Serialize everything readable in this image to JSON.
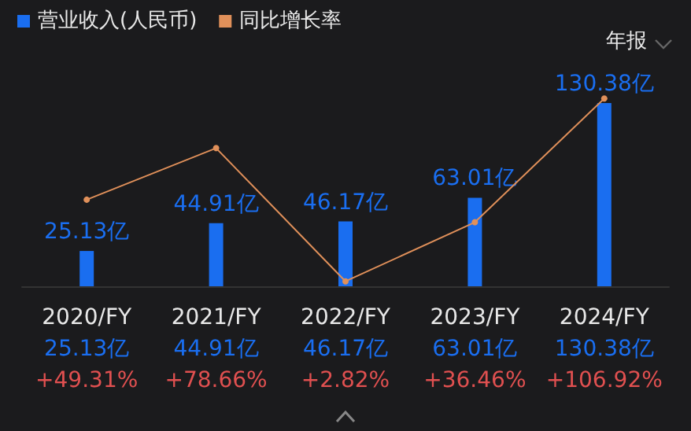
{
  "chart_data": {
    "type": "bar",
    "categories": [
      "2020/FY",
      "2021/FY",
      "2022/FY",
      "2023/FY",
      "2024/FY"
    ],
    "series": [
      {
        "name": "营业收入(人民币)",
        "color": "#1a6ef0",
        "values": [
          25.13,
          44.91,
          46.17,
          63.01,
          130.38
        ],
        "value_labels": [
          "25.13亿",
          "44.91亿",
          "46.17亿",
          "63.01亿",
          "130.38亿"
        ]
      },
      {
        "name": "同比增长率",
        "type": "line",
        "axis": "y2",
        "color": "#e0905a",
        "values": [
          49.31,
          78.66,
          2.82,
          36.46,
          106.92
        ],
        "value_labels": [
          "+49.31%",
          "+78.66%",
          "+2.82%",
          "+36.46%",
          "+106.92%"
        ]
      }
    ],
    "legend": "top left",
    "marker": "circle",
    "line_style": "solid",
    "grid": false,
    "tick_labels": "x",
    "annotations": [
      "年报"
    ]
  }
}
